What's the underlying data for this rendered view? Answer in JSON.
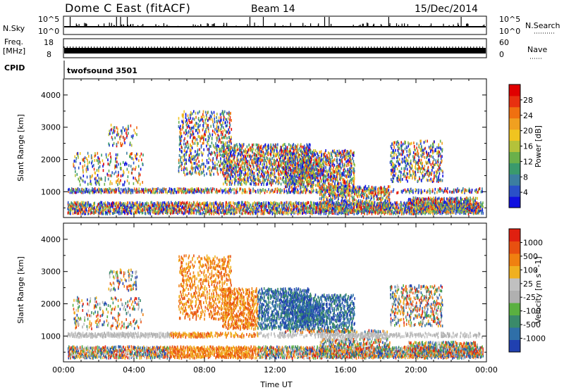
{
  "header": {
    "station": "Dome C East (fitACF)",
    "beam": "Beam 14",
    "date": "15/Dec/2014"
  },
  "top_panels": {
    "nsky_label": "N.Sky",
    "nsky_ticks": [
      "10^5",
      "10^0"
    ],
    "nsearch_label": "N.Search",
    "nsearch_ticks": [
      "10^5",
      "10^0"
    ],
    "freq_label_1": "Freq.",
    "freq_label_2": "[MHz]",
    "freq_ticks": [
      "18",
      "8"
    ],
    "nave_label": "Nave",
    "nave_ticks": [
      "60",
      "0"
    ],
    "cpid_label": "CPID",
    "cpid_value": "twofsound 3501"
  },
  "chart_data": [
    {
      "type": "heatmap",
      "name": "power",
      "ylabel": "Slant Range [km]",
      "xlabel": "",
      "x_ticks": [
        "00:00",
        "04:00",
        "08:00",
        "12:00",
        "16:00",
        "20:00",
        "00:00"
      ],
      "y_ticks": [
        1000,
        2000,
        3000,
        4000
      ],
      "ylim": [
        200,
        4500
      ],
      "colorbar_label": "Power [dB]",
      "colorbar_ticks": [
        "4",
        "8",
        "12",
        "16",
        "20",
        "24",
        "28"
      ],
      "colorbar_colors": [
        "#1010e0",
        "#2a50c8",
        "#3c7ea0",
        "#3a9a6c",
        "#6ab04a",
        "#b4c23a",
        "#f0c420",
        "#f0a020",
        "#f07010",
        "#e83010",
        "#e00000"
      ]
    },
    {
      "type": "heatmap",
      "name": "velocity",
      "ylabel": "Slant Range [km]",
      "xlabel": "Time UT",
      "x_ticks": [
        "00:00",
        "04:00",
        "08:00",
        "12:00",
        "16:00",
        "20:00",
        "00:00"
      ],
      "y_ticks": [
        1000,
        2000,
        3000,
        4000
      ],
      "ylim": [
        200,
        4500
      ],
      "colorbar_label": "Velocity [m s^-1]",
      "colorbar_ticks": [
        "1000",
        "500",
        "100",
        "25",
        "-25",
        "-100",
        "-500",
        "-1000"
      ],
      "colorbar_colors": [
        "#2040b0",
        "#2f6fa8",
        "#3a8a6a",
        "#5ab040",
        "#b0b0b0",
        "#c0c0c0",
        "#f0b020",
        "#f08010",
        "#e85010",
        "#e02010"
      ]
    }
  ]
}
